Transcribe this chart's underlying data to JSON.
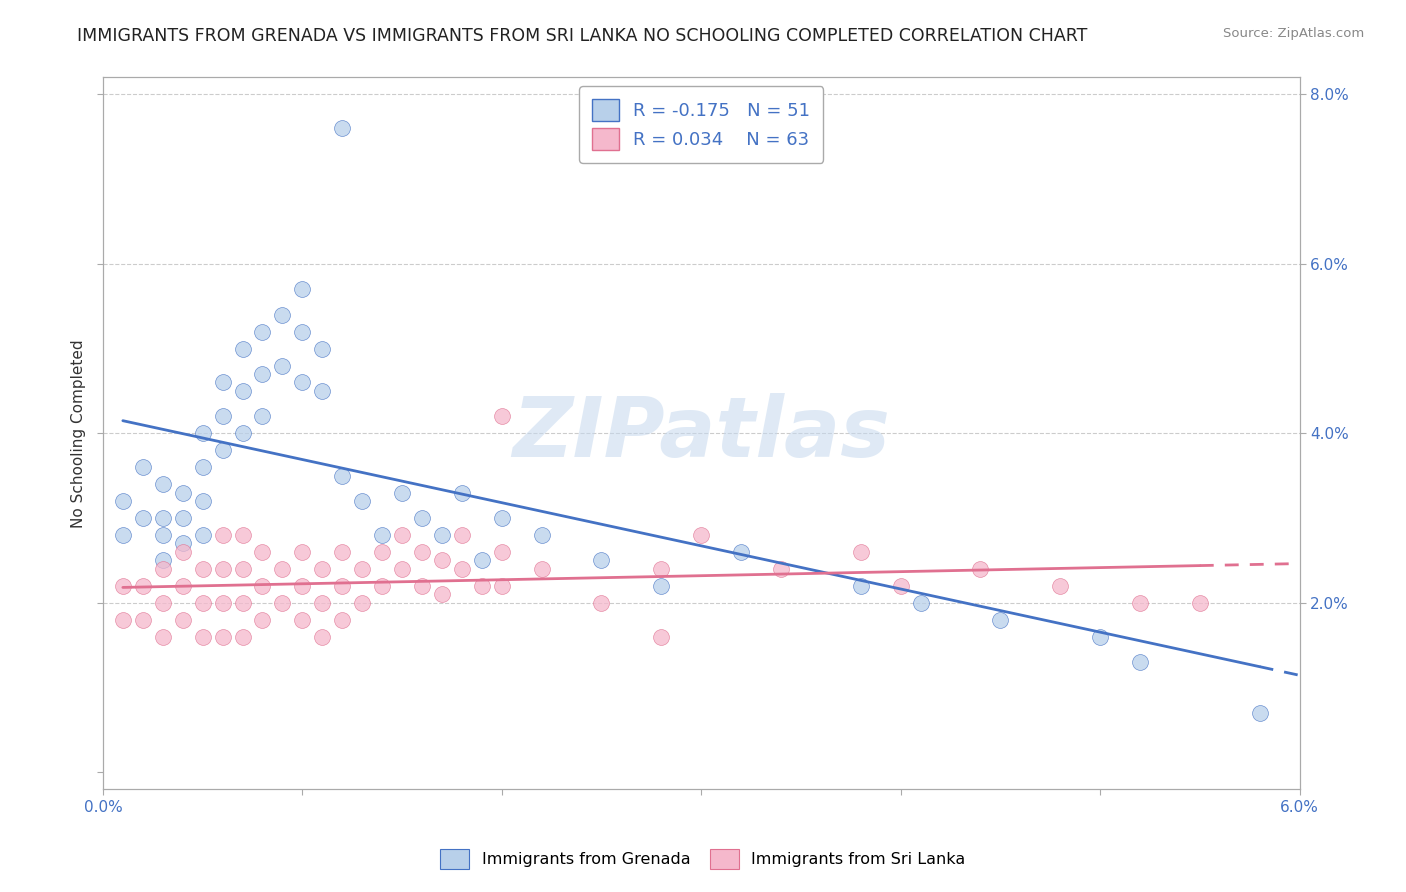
{
  "title": "IMMIGRANTS FROM GRENADA VS IMMIGRANTS FROM SRI LANKA NO SCHOOLING COMPLETED CORRELATION CHART",
  "source": "Source: ZipAtlas.com",
  "ylabel": "No Schooling Completed",
  "legend_label1": "Immigrants from Grenada",
  "legend_label2": "Immigrants from Sri Lanka",
  "r1": -0.175,
  "n1": 51,
  "r2": 0.034,
  "n2": 63,
  "color1": "#b8d0ea",
  "color2": "#f5b8cc",
  "line_color1": "#4472c4",
  "line_color2": "#e07090",
  "xlim": [
    0.0,
    0.06
  ],
  "ylim": [
    -0.002,
    0.082
  ],
  "right_yticks": [
    0.02,
    0.04,
    0.06,
    0.08
  ],
  "right_ytick_labels": [
    "2.0%",
    "4.0%",
    "6.0%",
    "8.0%"
  ],
  "watermark": "ZIPatlas",
  "background_color": "#ffffff",
  "title_fontsize": 12.5,
  "axis_fontsize": 11,
  "tick_fontsize": 11,
  "grenada_x": [
    0.001,
    0.001,
    0.002,
    0.002,
    0.003,
    0.003,
    0.003,
    0.003,
    0.004,
    0.004,
    0.004,
    0.005,
    0.005,
    0.005,
    0.005,
    0.006,
    0.006,
    0.006,
    0.007,
    0.007,
    0.007,
    0.008,
    0.008,
    0.008,
    0.009,
    0.009,
    0.01,
    0.01,
    0.01,
    0.011,
    0.011,
    0.012,
    0.012,
    0.013,
    0.014,
    0.015,
    0.016,
    0.017,
    0.018,
    0.019,
    0.02,
    0.022,
    0.025,
    0.028,
    0.032,
    0.038,
    0.041,
    0.045,
    0.05,
    0.052,
    0.058
  ],
  "grenada_y": [
    0.028,
    0.032,
    0.03,
    0.036,
    0.034,
    0.03,
    0.028,
    0.025,
    0.033,
    0.03,
    0.027,
    0.04,
    0.036,
    0.032,
    0.028,
    0.046,
    0.042,
    0.038,
    0.05,
    0.045,
    0.04,
    0.052,
    0.047,
    0.042,
    0.054,
    0.048,
    0.057,
    0.052,
    0.046,
    0.05,
    0.045,
    0.076,
    0.035,
    0.032,
    0.028,
    0.033,
    0.03,
    0.028,
    0.033,
    0.025,
    0.03,
    0.028,
    0.025,
    0.022,
    0.026,
    0.022,
    0.02,
    0.018,
    0.016,
    0.013,
    0.007
  ],
  "srilanka_x": [
    0.001,
    0.001,
    0.002,
    0.002,
    0.003,
    0.003,
    0.003,
    0.004,
    0.004,
    0.004,
    0.005,
    0.005,
    0.005,
    0.006,
    0.006,
    0.006,
    0.006,
    0.007,
    0.007,
    0.007,
    0.007,
    0.008,
    0.008,
    0.008,
    0.009,
    0.009,
    0.01,
    0.01,
    0.01,
    0.011,
    0.011,
    0.011,
    0.012,
    0.012,
    0.012,
    0.013,
    0.013,
    0.014,
    0.014,
    0.015,
    0.015,
    0.016,
    0.016,
    0.017,
    0.017,
    0.018,
    0.018,
    0.019,
    0.02,
    0.02,
    0.022,
    0.025,
    0.028,
    0.03,
    0.034,
    0.038,
    0.04,
    0.044,
    0.048,
    0.052,
    0.02,
    0.028,
    0.055
  ],
  "srilanka_y": [
    0.018,
    0.022,
    0.022,
    0.018,
    0.024,
    0.02,
    0.016,
    0.026,
    0.022,
    0.018,
    0.024,
    0.02,
    0.016,
    0.028,
    0.024,
    0.02,
    0.016,
    0.028,
    0.024,
    0.02,
    0.016,
    0.026,
    0.022,
    0.018,
    0.024,
    0.02,
    0.026,
    0.022,
    0.018,
    0.024,
    0.02,
    0.016,
    0.026,
    0.022,
    0.018,
    0.024,
    0.02,
    0.026,
    0.022,
    0.028,
    0.024,
    0.026,
    0.022,
    0.025,
    0.021,
    0.028,
    0.024,
    0.022,
    0.026,
    0.022,
    0.024,
    0.02,
    0.024,
    0.028,
    0.024,
    0.026,
    0.022,
    0.024,
    0.022,
    0.02,
    0.042,
    0.016,
    0.02
  ]
}
